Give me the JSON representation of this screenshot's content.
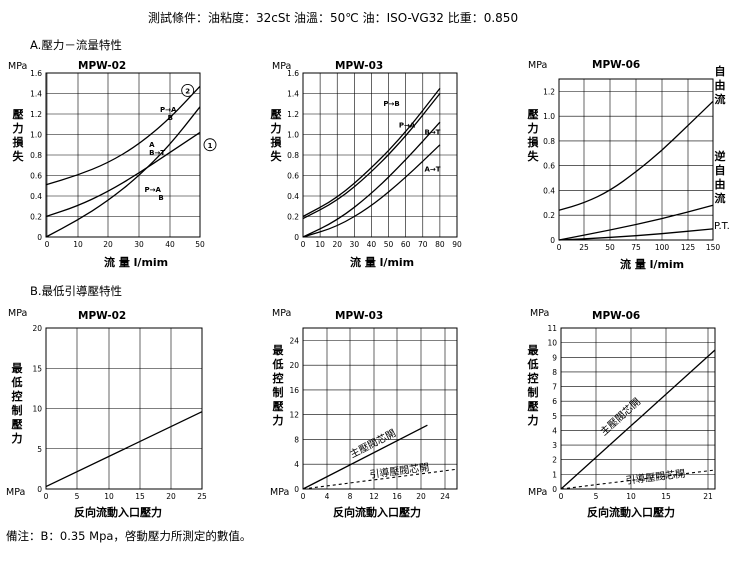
{
  "header": "測試條件：油粘度：32cSt  油溫：50℃  油：ISO-VG32  比重：0.850",
  "section_a": "A.壓力－流量特性",
  "section_b": "B.最低引導壓特性",
  "footnote": "備注：B：0.35 Mpa，啓動壓力所測定的數值。",
  "chart_data": [
    {
      "id": "a1",
      "type": "line",
      "title": "MPW-02",
      "unit": "MPa",
      "ylabel": "壓力損失",
      "xlabel": "流 量  l/mim",
      "xlim": [
        0,
        50
      ],
      "ylim": [
        0,
        1.6
      ],
      "xticks": [
        0,
        10,
        20,
        30,
        40,
        50
      ],
      "yticks": [
        0,
        0.2,
        0.4,
        0.6,
        0.8,
        1.0,
        1.2,
        1.4,
        1.6
      ],
      "ytick_labels": [
        "0",
        "0.2",
        "0.4",
        "0.6",
        "0.8",
        "1.0",
        "1.2",
        "1.4",
        "1.6"
      ],
      "series": [
        {
          "x": [
            0,
            10,
            20,
            30,
            40,
            50
          ],
          "y": [
            0.51,
            0.6,
            0.72,
            0.9,
            1.15,
            1.47
          ]
        },
        {
          "x": [
            0,
            10,
            20,
            30,
            40,
            50
          ],
          "y": [
            0.2,
            0.3,
            0.44,
            0.62,
            0.82,
            1.02
          ]
        },
        {
          "x": [
            0,
            10,
            20,
            30,
            40,
            50
          ],
          "y": [
            0.0,
            0.16,
            0.35,
            0.59,
            0.89,
            1.27
          ]
        }
      ],
      "annotations": [
        {
          "text": "P→A",
          "x": 37,
          "y": 1.22
        },
        {
          "text": "B",
          "x": 39.5,
          "y": 1.14
        },
        {
          "text": "A",
          "x": 33.5,
          "y": 0.88
        },
        {
          "text": "B→T",
          "x": 33.5,
          "y": 0.8
        },
        {
          "text": "P→A",
          "x": 32,
          "y": 0.44
        },
        {
          "text": "B",
          "x": 36.5,
          "y": 0.36
        }
      ],
      "markers": [
        {
          "text": "2",
          "x": 46,
          "y": 1.43
        },
        {
          "text": "1",
          "x": 54,
          "y": 0.9
        }
      ]
    },
    {
      "id": "a2",
      "type": "line",
      "title": "MPW-03",
      "unit": "MPa",
      "ylabel": "壓力損失",
      "xlabel": "流 量  l/mim",
      "xlim": [
        0,
        90
      ],
      "ylim": [
        0,
        1.6
      ],
      "xticks": [
        0,
        10,
        20,
        30,
        40,
        50,
        60,
        70,
        80,
        90
      ],
      "yticks": [
        0,
        0.2,
        0.4,
        0.6,
        0.8,
        1.0,
        1.2,
        1.4,
        1.6
      ],
      "ytick_labels": [
        "0",
        "0.2",
        "0.4",
        "0.6",
        "0.8",
        "1.0",
        "1.2",
        "1.4",
        "1.6"
      ],
      "series": [
        {
          "x": [
            0,
            20,
            40,
            60,
            80
          ],
          "y": [
            0.2,
            0.38,
            0.67,
            1.02,
            1.45
          ]
        },
        {
          "x": [
            0,
            20,
            40,
            60,
            80
          ],
          "y": [
            0.18,
            0.35,
            0.63,
            0.98,
            1.4
          ]
        },
        {
          "x": [
            0,
            20,
            40,
            60,
            80
          ],
          "y": [
            0.0,
            0.16,
            0.42,
            0.75,
            1.12
          ]
        },
        {
          "x": [
            0,
            20,
            40,
            60,
            80
          ],
          "y": [
            0.0,
            0.1,
            0.3,
            0.58,
            0.9
          ]
        }
      ],
      "annotations": [
        {
          "text": "P→B",
          "x": 47,
          "y": 1.28
        },
        {
          "text": "P→A",
          "x": 56,
          "y": 1.07
        },
        {
          "text": "B→T",
          "x": 71,
          "y": 1.0
        },
        {
          "text": "A→T",
          "x": 71,
          "y": 0.64
        }
      ]
    },
    {
      "id": "a3",
      "type": "line",
      "title": "MPW-06",
      "unit": "MPa",
      "ylabel": "壓力損失",
      "xlabel": "流 量  l/mim",
      "xlim": [
        0,
        150
      ],
      "ylim": [
        0,
        1.3
      ],
      "xticks": [
        0,
        25,
        50,
        75,
        100,
        125,
        150
      ],
      "yticks": [
        0,
        0.2,
        0.4,
        0.6,
        0.8,
        1.0,
        1.2
      ],
      "ytick_labels": [
        "0",
        "0.2",
        "0.4",
        "0.6",
        "0.8",
        "1.0",
        "1.2"
      ],
      "series": [
        {
          "name": "自由流",
          "x": [
            0,
            25,
            50,
            75,
            100,
            125,
            150
          ],
          "y": [
            0.24,
            0.3,
            0.4,
            0.55,
            0.72,
            0.92,
            1.12
          ]
        },
        {
          "name": "逆自由流",
          "x": [
            0,
            50,
            100,
            150
          ],
          "y": [
            0.0,
            0.08,
            0.17,
            0.28
          ]
        },
        {
          "name": "P.T.",
          "x": [
            0,
            50,
            100,
            150
          ],
          "y": [
            0.0,
            0.02,
            0.05,
            0.09
          ]
        }
      ]
    },
    {
      "id": "b1",
      "type": "line",
      "title": "MPW-02",
      "unit": "MPa",
      "ylabel": "最低控制壓力",
      "xlabel": "反向流動入口壓力",
      "xlim": [
        0,
        25
      ],
      "ylim": [
        0,
        20
      ],
      "xticks": [
        0,
        5,
        10,
        15,
        20,
        25
      ],
      "yticks": [
        0,
        5,
        10,
        15,
        20
      ],
      "ytick_labels": [
        "0",
        "5",
        "10",
        "15",
        "20"
      ],
      "series": [
        {
          "x": [
            0,
            25
          ],
          "y": [
            0.3,
            9.6
          ]
        }
      ]
    },
    {
      "id": "b2",
      "type": "line",
      "title": "MPW-03",
      "unit": "MPa",
      "ylabel": "最低控制壓力",
      "xlabel": "反向流動入口壓力",
      "xlim": [
        0,
        26
      ],
      "ylim": [
        0,
        26
      ],
      "xticks": [
        0,
        4,
        8,
        12,
        16,
        20,
        24
      ],
      "yticks": [
        0,
        4,
        8,
        12,
        16,
        20,
        24
      ],
      "ytick_labels": [
        "0",
        "4",
        "8",
        "12",
        "16",
        "20",
        "24"
      ],
      "series": [
        {
          "name": "主壓閥芯開",
          "x": [
            0,
            21
          ],
          "y": [
            0,
            10.3
          ]
        },
        {
          "name": "引導壓閥芯開",
          "x": [
            0,
            26
          ],
          "y": [
            0,
            3.2
          ]
        }
      ]
    },
    {
      "id": "b3",
      "type": "line",
      "title": "MPW-06",
      "unit": "MPa",
      "ylabel": "最低控制壓力",
      "xlabel": "反向流動入口壓力",
      "xlim": [
        0,
        22
      ],
      "ylim": [
        0,
        11
      ],
      "xticks": [
        0,
        5,
        10,
        15,
        21
      ],
      "yticks": [
        0,
        1,
        2,
        3,
        4,
        5,
        6,
        7,
        8,
        9,
        10,
        11
      ],
      "ytick_labels": [
        "0",
        "1",
        "2",
        "3",
        "4",
        "5",
        "6",
        "7",
        "8",
        "9",
        "10",
        "11"
      ],
      "series": [
        {
          "name": "主壓閥芯開",
          "x": [
            0,
            22
          ],
          "y": [
            0,
            9.5
          ]
        },
        {
          "name": "引導壓閥芯開",
          "x": [
            0,
            22
          ],
          "y": [
            0,
            1.3
          ]
        }
      ]
    }
  ]
}
